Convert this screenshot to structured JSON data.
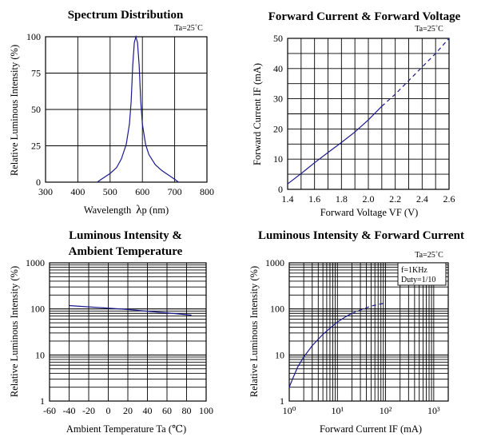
{
  "chart_data": [
    {
      "type": "line",
      "title": "Spectrum Distribution",
      "note": "Ta=25˚C",
      "xlabel": "Wavelength",
      "xlabel_symbol": "λ",
      "xlabel_suffix": "p (nm)",
      "ylabel": "Relative Luminous Intensity (%)",
      "xlim": [
        300,
        800
      ],
      "ylim": [
        0,
        100
      ],
      "xticks": [
        "300",
        "400",
        "500",
        "600",
        "700",
        "800"
      ],
      "yticks": [
        "0",
        "25",
        "50",
        "75",
        "100"
      ],
      "grid": true,
      "series": [
        {
          "color": "#1a1a8c",
          "x": [
            460,
            480,
            500,
            520,
            535,
            550,
            560,
            565,
            570,
            575,
            580,
            585,
            590,
            595,
            600,
            610,
            620,
            640,
            660,
            680,
            700,
            712
          ],
          "y": [
            0,
            3,
            6,
            10,
            16,
            26,
            40,
            55,
            80,
            96,
            100,
            96,
            80,
            55,
            40,
            26,
            19,
            12,
            8,
            5,
            2,
            0
          ]
        }
      ]
    },
    {
      "type": "line",
      "title": "Forward Current & Forward Voltage",
      "note": "Ta=25˚C",
      "xlabel": "Forward Voltage  VF (V)",
      "ylabel": "Forward Current IF (mA)",
      "xlim": [
        1.4,
        2.6
      ],
      "ylim": [
        0,
        50
      ],
      "xticks": [
        "1.4",
        "1.6",
        "1.8",
        "2.0",
        "2.2",
        "2.4",
        "2.6"
      ],
      "yticks": [
        "0",
        "10",
        "20",
        "30",
        "40",
        "50"
      ],
      "grid": true,
      "series": [
        {
          "color": "#1a1a8c",
          "x": [
            1.4,
            1.5,
            1.6,
            1.7,
            1.8,
            1.9,
            2.0,
            2.1,
            2.2,
            2.3,
            2.4,
            2.5,
            2.6
          ],
          "y": [
            1.8,
            5.2,
            8.8,
            12.2,
            15.5,
            19.0,
            23.0,
            27.5,
            31.5,
            36.0,
            40.5,
            45.0,
            50.0
          ],
          "dashed_from_x": 2.1
        }
      ]
    },
    {
      "type": "line",
      "title": [
        "Luminous Intensity &",
        "Ambient Temperature"
      ],
      "xlabel": "Ambient Temperature Ta (℃)",
      "ylabel": "Relative Luminous Intensity (%)",
      "xlim": [
        -60,
        100
      ],
      "ylim": [
        1,
        1000
      ],
      "yscale": "log",
      "xticks": [
        "-60",
        "-40",
        "-20",
        "0",
        "20",
        "40",
        "60",
        "80",
        "100"
      ],
      "yticks": [
        "1",
        "10",
        "100",
        "1000"
      ],
      "grid": true,
      "series": [
        {
          "color": "#1a1a8c",
          "x": [
            -40,
            -20,
            0,
            20,
            40,
            60,
            85
          ],
          "y": [
            118,
            111,
            104,
            97,
            89,
            82,
            73
          ]
        }
      ]
    },
    {
      "type": "line",
      "title": "Luminous Intensity & Forward Current",
      "note": "Ta=25˚C",
      "legend_lines": [
        "f=1KHz",
        "Duty=1/10"
      ],
      "xlabel": "Forward Current IF (mA)",
      "ylabel": "Relative Luminous Intensity (%)",
      "xlim": [
        1,
        2000
      ],
      "ylim": [
        1,
        1000
      ],
      "xscale": "log",
      "yscale": "log",
      "xticks": [
        "10⁰",
        "10¹",
        "10²",
        "10³"
      ],
      "yticks": [
        "1",
        "10",
        "100",
        "1000"
      ],
      "grid": true,
      "series": [
        {
          "color": "#1a1a8c",
          "x": [
            1,
            1.2,
            1.5,
            2,
            3,
            5,
            7,
            10,
            15,
            20,
            30,
            50,
            70,
            100
          ],
          "y": [
            2,
            3.2,
            5.5,
            9,
            16,
            28,
            38,
            52,
            68,
            80,
            95,
            115,
            125,
            135
          ],
          "dashed_from_x": 20
        }
      ]
    }
  ]
}
